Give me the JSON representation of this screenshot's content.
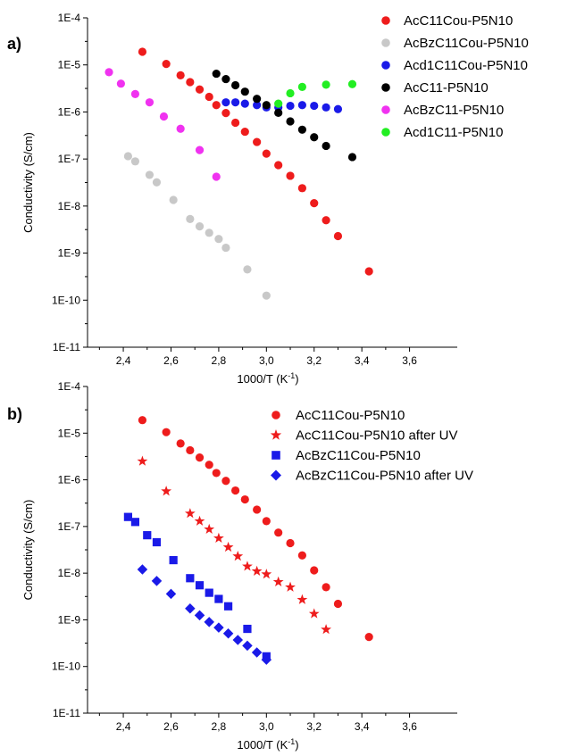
{
  "chart_data": [
    {
      "panel": "a)",
      "type": "scatter",
      "xlabel": "1000/T (K",
      "xlabel_sup": "-1",
      "xlabel_suffix": ")",
      "ylabel": "Conductivity (S/cm)",
      "xlim": [
        2.25,
        3.8
      ],
      "ylim": [
        -11,
        -4
      ],
      "yscale": "log",
      "xticks": [
        "2,4",
        "2,6",
        "2,8",
        "3,0",
        "3,2",
        "3,4",
        "3,6"
      ],
      "xtick_values": [
        2.4,
        2.6,
        2.8,
        3.0,
        3.2,
        3.4,
        3.6
      ],
      "yticks": [
        "1E-11",
        "1E-10",
        "1E-9",
        "1E-8",
        "1E-7",
        "1E-6",
        "1E-5",
        "1E-4"
      ],
      "legend_position": "top-right",
      "series": [
        {
          "name": "AcC11Cou-P5N10",
          "color": "#ee1c1c",
          "marker": "circle",
          "points": [
            [
              2.48,
              1.9e-05
            ],
            [
              2.58,
              1.05e-05
            ],
            [
              2.64,
              6e-06
            ],
            [
              2.68,
              4.3e-06
            ],
            [
              2.72,
              3e-06
            ],
            [
              2.76,
              2.1e-06
            ],
            [
              2.79,
              1.4e-06
            ],
            [
              2.83,
              9.5e-07
            ],
            [
              2.87,
              5.9e-07
            ],
            [
              2.91,
              3.8e-07
            ],
            [
              2.96,
              2.3e-07
            ],
            [
              3.0,
              1.3e-07
            ],
            [
              3.05,
              7.4e-08
            ],
            [
              3.1,
              4.4e-08
            ],
            [
              3.15,
              2.4e-08
            ],
            [
              3.2,
              1.15e-08
            ],
            [
              3.25,
              5e-09
            ],
            [
              3.3,
              2.3e-09
            ],
            [
              3.43,
              4.1e-10
            ]
          ]
        },
        {
          "name": "AcBzC11Cou-P5N10",
          "color": "#c8c8c8",
          "marker": "circle",
          "points": [
            [
              2.42,
              1.15e-07
            ],
            [
              2.45,
              8.9e-08
            ],
            [
              2.51,
              4.6e-08
            ],
            [
              2.54,
              3.2e-08
            ],
            [
              2.61,
              1.35e-08
            ],
            [
              2.68,
              5.3e-09
            ],
            [
              2.72,
              3.7e-09
            ],
            [
              2.76,
              2.7e-09
            ],
            [
              2.8,
              2e-09
            ],
            [
              2.83,
              1.3e-09
            ],
            [
              2.92,
              4.5e-10
            ],
            [
              3.0,
              1.25e-10
            ]
          ]
        },
        {
          "name": "Acd1C11Cou-P5N10",
          "color": "#1a1ae8",
          "marker": "circle",
          "points": [
            [
              2.83,
              1.6e-06
            ],
            [
              2.87,
              1.6e-06
            ],
            [
              2.91,
              1.5e-06
            ],
            [
              2.96,
              1.4e-06
            ],
            [
              3.0,
              1.25e-06
            ],
            [
              3.05,
              1.25e-06
            ],
            [
              3.1,
              1.35e-06
            ],
            [
              3.15,
              1.4e-06
            ],
            [
              3.2,
              1.35e-06
            ],
            [
              3.25,
              1.25e-06
            ],
            [
              3.3,
              1.15e-06
            ]
          ]
        },
        {
          "name": "AcC11-P5N10",
          "color": "#000000",
          "marker": "circle",
          "points": [
            [
              2.79,
              6.5e-06
            ],
            [
              2.83,
              5e-06
            ],
            [
              2.87,
              3.7e-06
            ],
            [
              2.91,
              2.7e-06
            ],
            [
              2.96,
              1.9e-06
            ],
            [
              3.0,
              1.4e-06
            ],
            [
              3.05,
              9.6e-07
            ],
            [
              3.1,
              6.3e-07
            ],
            [
              3.15,
              4.2e-07
            ],
            [
              3.2,
              2.9e-07
            ],
            [
              3.25,
              1.9e-07
            ],
            [
              3.36,
              1.1e-07
            ]
          ]
        },
        {
          "name": "AcBzC11-P5N10",
          "color": "#f032f0",
          "marker": "circle",
          "points": [
            [
              2.34,
              7e-06
            ],
            [
              2.39,
              4e-06
            ],
            [
              2.45,
              2.4e-06
            ],
            [
              2.51,
              1.6e-06
            ],
            [
              2.57,
              8e-07
            ],
            [
              2.64,
              4.4e-07
            ],
            [
              2.72,
              1.55e-07
            ],
            [
              2.79,
              4.2e-08
            ]
          ]
        },
        {
          "name": "Acd1C11-P5N10",
          "color": "#22ee22",
          "marker": "circle",
          "points": [
            [
              3.05,
              1.5e-06
            ],
            [
              3.1,
              2.5e-06
            ],
            [
              3.15,
              3.4e-06
            ],
            [
              3.25,
              3.8e-06
            ],
            [
              3.36,
              3.9e-06
            ]
          ]
        }
      ]
    },
    {
      "panel": "b)",
      "type": "scatter",
      "xlabel": "1000/T (K",
      "xlabel_sup": "-1",
      "xlabel_suffix": ")",
      "ylabel": "Conductivity (S/cm)",
      "xlim": [
        2.25,
        3.8
      ],
      "ylim": [
        -11,
        -4
      ],
      "yscale": "log",
      "xticks": [
        "2,4",
        "2,6",
        "2,8",
        "3,0",
        "3,2",
        "3,4",
        "3,6"
      ],
      "xtick_values": [
        2.4,
        2.6,
        2.8,
        3.0,
        3.2,
        3.4,
        3.6
      ],
      "yticks": [
        "1E-11",
        "1E-10",
        "1E-9",
        "1E-8",
        "1E-7",
        "1E-6",
        "1E-5",
        "1E-4"
      ],
      "legend_position": "top-right",
      "series": [
        {
          "name": "AcC11Cou-P5N10",
          "color": "#ee1c1c",
          "marker": "circle",
          "points": [
            [
              2.48,
              1.9e-05
            ],
            [
              2.58,
              1.05e-05
            ],
            [
              2.64,
              6e-06
            ],
            [
              2.68,
              4.3e-06
            ],
            [
              2.72,
              3e-06
            ],
            [
              2.76,
              2.1e-06
            ],
            [
              2.79,
              1.4e-06
            ],
            [
              2.83,
              9.5e-07
            ],
            [
              2.87,
              5.9e-07
            ],
            [
              2.91,
              3.8e-07
            ],
            [
              2.96,
              2.3e-07
            ],
            [
              3.0,
              1.3e-07
            ],
            [
              3.05,
              7.4e-08
            ],
            [
              3.1,
              4.4e-08
            ],
            [
              3.15,
              2.4e-08
            ],
            [
              3.2,
              1.15e-08
            ],
            [
              3.25,
              5e-09
            ],
            [
              3.3,
              2.2e-09
            ],
            [
              3.43,
              4.3e-10
            ]
          ]
        },
        {
          "name": "AcC11Cou-P5N10 after UV",
          "color": "#ee1c1c",
          "marker": "star",
          "points": [
            [
              2.48,
              2.5e-06
            ],
            [
              2.58,
              5.7e-07
            ],
            [
              2.68,
              1.9e-07
            ],
            [
              2.72,
              1.3e-07
            ],
            [
              2.76,
              8.7e-08
            ],
            [
              2.8,
              5.6e-08
            ],
            [
              2.84,
              3.6e-08
            ],
            [
              2.88,
              2.3e-08
            ],
            [
              2.92,
              1.4e-08
            ],
            [
              2.96,
              1.1e-08
            ],
            [
              3.0,
              9.5e-09
            ],
            [
              3.05,
              6.5e-09
            ],
            [
              3.1,
              5e-09
            ],
            [
              3.15,
              2.7e-09
            ],
            [
              3.2,
              1.35e-09
            ],
            [
              3.25,
              6.2e-10
            ]
          ]
        },
        {
          "name": "AcBzC11Cou-P5N10",
          "color": "#1a1ae8",
          "marker": "square",
          "points": [
            [
              2.42,
              1.6e-07
            ],
            [
              2.45,
              1.25e-07
            ],
            [
              2.5,
              6.5e-08
            ],
            [
              2.54,
              4.6e-08
            ],
            [
              2.61,
              1.9e-08
            ],
            [
              2.68,
              7.8e-09
            ],
            [
              2.72,
              5.5e-09
            ],
            [
              2.76,
              3.8e-09
            ],
            [
              2.8,
              2.8e-09
            ],
            [
              2.84,
              1.95e-09
            ],
            [
              2.92,
              6.4e-10
            ],
            [
              3.0,
              1.65e-10
            ]
          ]
        },
        {
          "name": "AcBzC11Cou-P5N10 after UV",
          "color": "#1a1ae8",
          "marker": "diamond",
          "points": [
            [
              2.48,
              1.2e-08
            ],
            [
              2.54,
              6.8e-09
            ],
            [
              2.6,
              3.6e-09
            ],
            [
              2.68,
              1.75e-09
            ],
            [
              2.72,
              1.25e-09
            ],
            [
              2.76,
              9e-10
            ],
            [
              2.8,
              6.8e-10
            ],
            [
              2.84,
              5.1e-10
            ],
            [
              2.88,
              3.7e-10
            ],
            [
              2.92,
              2.8e-10
            ],
            [
              2.96,
              2e-10
            ],
            [
              3.0,
              1.4e-10
            ]
          ]
        }
      ]
    }
  ]
}
